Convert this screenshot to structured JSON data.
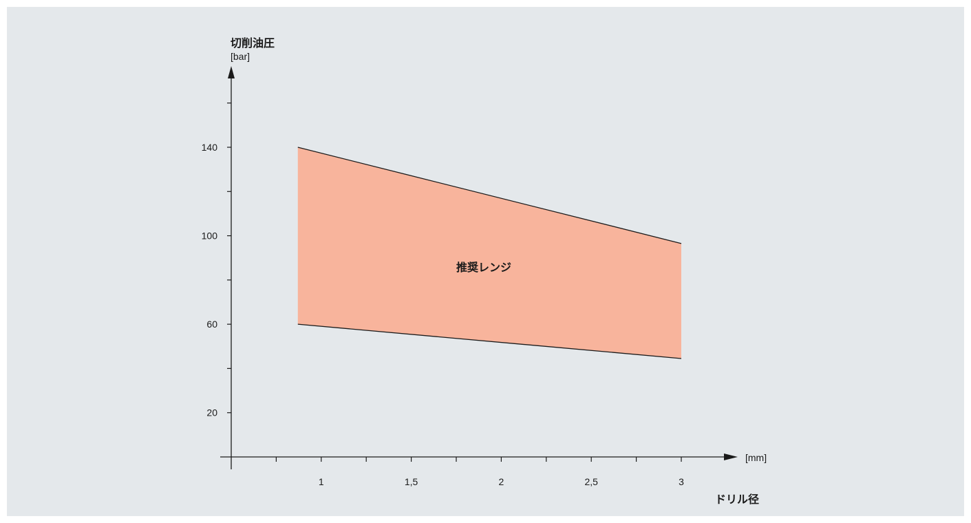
{
  "chart_data": {
    "type": "area",
    "title": "",
    "ylabel": "切削油圧",
    "yunit": "[bar]",
    "xlabel": "ドリル径",
    "xunit": "[mm]",
    "xlim": [
      0.5,
      3.3
    ],
    "ylim": [
      0,
      170
    ],
    "x_ticks": [
      0.5,
      0.75,
      1,
      1.25,
      1.5,
      1.75,
      2,
      2.25,
      2.5,
      2.75,
      3
    ],
    "x_tick_labels": [
      {
        "value": 1,
        "label": "1"
      },
      {
        "value": 1.5,
        "label": "1,5"
      },
      {
        "value": 2,
        "label": "2"
      },
      {
        "value": 2.5,
        "label": "2,5"
      },
      {
        "value": 3,
        "label": "3"
      }
    ],
    "y_ticks": [
      20,
      40,
      60,
      80,
      100,
      120,
      140,
      160
    ],
    "y_tick_labels": [
      {
        "value": 20,
        "label": "20"
      },
      {
        "value": 60,
        "label": "60"
      },
      {
        "value": 100,
        "label": "100"
      },
      {
        "value": 140,
        "label": "140"
      }
    ],
    "series": [
      {
        "name": "推奨レンジ",
        "x": [
          0.87,
          3.0
        ],
        "upper": [
          140,
          96.5
        ],
        "lower": [
          60,
          44.5
        ],
        "color": "#f8b49c"
      }
    ],
    "grid": false,
    "legend": "none"
  },
  "colors": {
    "background": "#e4e8eb",
    "range_fill": "#f8b49c",
    "line": "#1a1a1a"
  }
}
